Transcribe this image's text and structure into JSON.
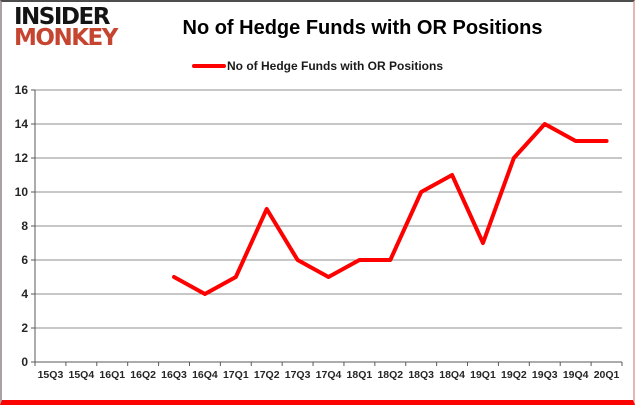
{
  "logo": {
    "line1": "INSIDER",
    "line2": "MONKEY",
    "line1_color": "#141414",
    "line2_color": "#c64531"
  },
  "header": {
    "title": "No of Hedge Funds with OR Positions"
  },
  "legend": {
    "label": "No of Hedge Funds with OR Positions",
    "color": "#fe0000"
  },
  "chart_data": {
    "type": "line",
    "title": "No of Hedge Funds with OR Positions",
    "xlabel": "",
    "ylabel": "",
    "categories": [
      "15Q3",
      "15Q4",
      "16Q1",
      "16Q2",
      "16Q3",
      "16Q4",
      "17Q1",
      "17Q2",
      "17Q3",
      "17Q4",
      "18Q1",
      "18Q2",
      "18Q3",
      "18Q4",
      "19Q1",
      "19Q2",
      "19Q3",
      "19Q4",
      "20Q1"
    ],
    "series": [
      {
        "name": "No of Hedge Funds with OR Positions",
        "color": "#fe0000",
        "values": [
          null,
          null,
          null,
          null,
          5,
          4,
          5,
          9,
          6,
          5,
          6,
          6,
          10,
          11,
          7,
          12,
          14,
          13,
          13
        ]
      }
    ],
    "ylim": [
      0,
      16
    ],
    "yticks": [
      0,
      2,
      4,
      6,
      8,
      10,
      12,
      14,
      16
    ],
    "grid": true,
    "gridline_color": "#8f8f8f",
    "axis_color": "#595959",
    "legend_position": "top-center"
  }
}
